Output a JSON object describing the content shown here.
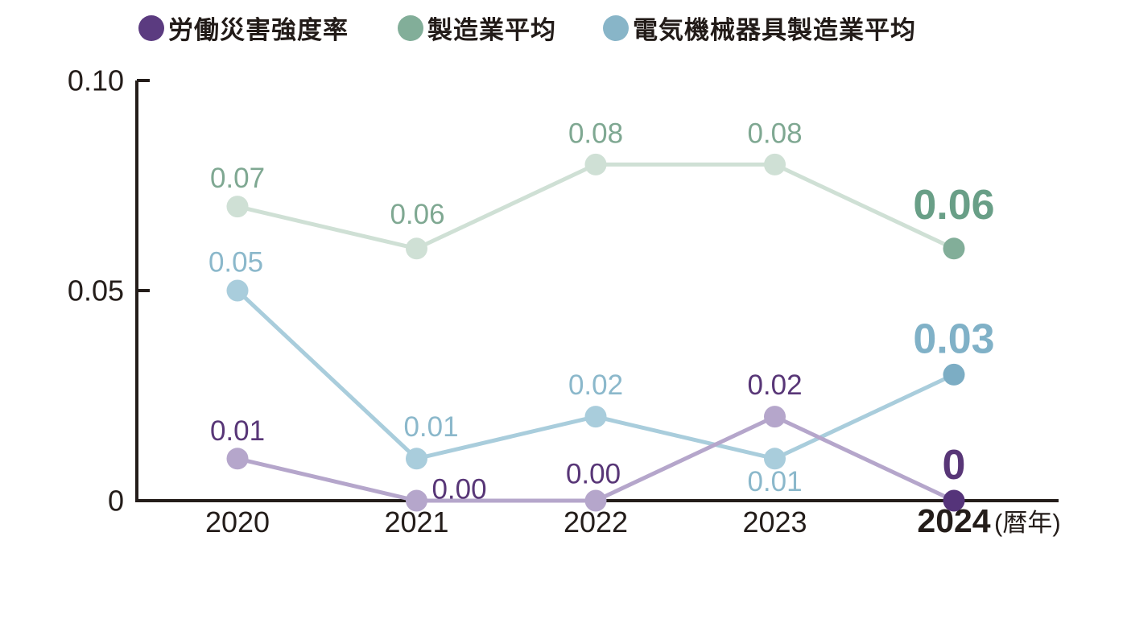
{
  "style": {
    "axis_color": "#241d1a",
    "text_color": "#221b18",
    "background": "#ffffff"
  },
  "legend": {
    "items": [
      {
        "label": "労働災害強度率",
        "color": "#5b3b80"
      },
      {
        "label": "製造業平均",
        "color": "#82ae99"
      },
      {
        "label": "電気機械器具製造業平均",
        "color": "#88b5c8"
      }
    ]
  },
  "chart_data": {
    "type": "line",
    "categories": [
      "2020",
      "2021",
      "2022",
      "2023",
      "2024"
    ],
    "x_axis_unit": "(暦年)",
    "xlabel": "",
    "ylabel": "",
    "ylim": [
      0,
      0.1
    ],
    "grid": false,
    "legend_position": "top",
    "emphasized_category_index": 4,
    "y_ticks": [
      {
        "value": 0.1,
        "label": "0.10"
      },
      {
        "value": 0.05,
        "label": "0.05"
      },
      {
        "value": 0,
        "label": "0"
      }
    ],
    "series": [
      {
        "name": "労働災害強度率",
        "values": [
          0.01,
          0.0,
          0.0,
          0.02,
          0
        ],
        "point_labels": [
          "0.01",
          "0.00",
          "0.00",
          "0.02",
          "0"
        ],
        "line_color": "#b5a6cb",
        "marker_color": "#b5a6cb",
        "final_marker_color": "#55347a",
        "label_color": "#583677",
        "final_label_color": "#583677",
        "label_offsets": [
          [
            0,
            -35
          ],
          [
            53,
            -15
          ],
          [
            -3,
            -34
          ],
          [
            0,
            -40
          ],
          [
            0,
            -45
          ]
        ]
      },
      {
        "name": "製造業平均",
        "values": [
          0.07,
          0.06,
          0.08,
          0.08,
          0.06
        ],
        "point_labels": [
          "0.07",
          "0.06",
          "0.08",
          "0.08",
          "0.06"
        ],
        "line_color": "#cfe0d5",
        "marker_color": "#cfe0d5",
        "final_marker_color": "#82ae99",
        "label_color": "#7fa892",
        "final_label_color": "#699f87",
        "label_offsets": [
          [
            0,
            -36
          ],
          [
            1,
            -43
          ],
          [
            0,
            -39
          ],
          [
            0,
            -39
          ],
          [
            0,
            -55
          ]
        ]
      },
      {
        "name": "電気機械器具製造業平均",
        "values": [
          0.05,
          0.01,
          0.02,
          0.01,
          0.03
        ],
        "point_labels": [
          "0.05",
          "0.01",
          "0.02",
          "0.01",
          "0.03"
        ],
        "line_color": "#a9cddc",
        "marker_color": "#a9cddc",
        "final_marker_color": "#7cadc4",
        "label_color": "#8bb8cb",
        "final_label_color": "#80b1c7",
        "label_offsets": [
          [
            -2,
            -36
          ],
          [
            18,
            -40
          ],
          [
            0,
            -40
          ],
          [
            0,
            28
          ],
          [
            0,
            -45
          ]
        ]
      }
    ]
  }
}
